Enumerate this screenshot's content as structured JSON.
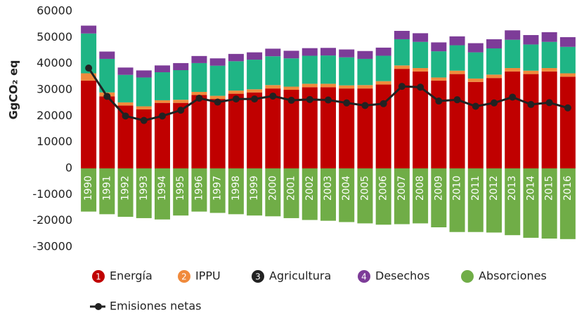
{
  "chart_data": {
    "type": "bar",
    "stacked": true,
    "ylabel": "GgCO₂ eq",
    "categories": [
      "1990",
      "1991",
      "1992",
      "1993",
      "1994",
      "1995",
      "1996",
      "1997",
      "1998",
      "1999",
      "2000",
      "2001",
      "2002",
      "2003",
      "2004",
      "2005",
      "2006",
      "2007",
      "2008",
      "2009",
      "2010",
      "2011",
      "2012",
      "2013",
      "2014",
      "2015",
      "2016"
    ],
    "ylim": [
      -30000,
      60000
    ],
    "yticks": [
      -30000,
      -20000,
      -10000,
      0,
      10000,
      20000,
      30000,
      40000,
      50000,
      60000
    ],
    "series": [
      {
        "name": "Energía",
        "kind": "bar",
        "color": "#c00000",
        "marker_color": "#c00000",
        "marker_label": "1",
        "values": [
          33500,
          27500,
          24000,
          22500,
          25000,
          25000,
          28000,
          26500,
          28500,
          29000,
          30500,
          30000,
          31000,
          31000,
          30500,
          30500,
          32000,
          38000,
          37000,
          33500,
          36000,
          33000,
          34500,
          37000,
          36000,
          37000,
          35000
        ]
      },
      {
        "name": "IPPU",
        "kind": "bar",
        "color": "#f08a3c",
        "marker_color": "#f08a3c",
        "marker_label": "2",
        "values": [
          2800,
          1500,
          1200,
          1200,
          1000,
          1200,
          1200,
          1200,
          1200,
          1200,
          1300,
          1200,
          1300,
          1300,
          1200,
          1300,
          1300,
          1300,
          1300,
          1200,
          1300,
          1300,
          1300,
          1300,
          1300,
          1300,
          1300
        ]
      },
      {
        "name": "Agricultura",
        "kind": "bar",
        "color": "#1fb585",
        "marker_color": "#222222",
        "marker_label": "3",
        "values": [
          15200,
          12800,
          10500,
          11000,
          10700,
          11300,
          11000,
          11500,
          11200,
          11300,
          11000,
          10800,
          10700,
          10800,
          10700,
          10000,
          9700,
          10000,
          10000,
          10000,
          9700,
          10000,
          10000,
          10800,
          10000,
          10000,
          10100
        ]
      },
      {
        "name": "Desechos",
        "kind": "bar",
        "color": "#7d3c98",
        "marker_color": "#7d3c98",
        "marker_label": "4",
        "values": [
          3000,
          2800,
          2800,
          2700,
          2600,
          2700,
          2700,
          2800,
          2800,
          2800,
          2900,
          2900,
          2900,
          2900,
          3000,
          3000,
          3100,
          3200,
          3300,
          3400,
          3400,
          3500,
          3500,
          3600,
          3600,
          3700,
          3700
        ]
      },
      {
        "name": "Absorciones",
        "kind": "bar",
        "color": "#70ad47",
        "marker_color": "#70ad47",
        "values": [
          -16500,
          -17500,
          -18500,
          -19000,
          -19500,
          -18000,
          -16500,
          -17000,
          -17500,
          -18000,
          -18300,
          -19000,
          -19700,
          -20000,
          -20500,
          -21000,
          -21500,
          -21300,
          -21000,
          -22500,
          -24300,
          -24300,
          -24500,
          -25500,
          -26500,
          -26800,
          -27000
        ]
      },
      {
        "name": "Emisiones netas",
        "kind": "line",
        "color": "#222222",
        "values": [
          38300,
          27500,
          20000,
          18300,
          20000,
          22200,
          26800,
          25300,
          26500,
          26500,
          27600,
          26000,
          26300,
          26100,
          25000,
          24000,
          24700,
          31300,
          31000,
          25700,
          26200,
          23700,
          25000,
          27200,
          24400,
          25100,
          23100
        ]
      }
    ]
  }
}
